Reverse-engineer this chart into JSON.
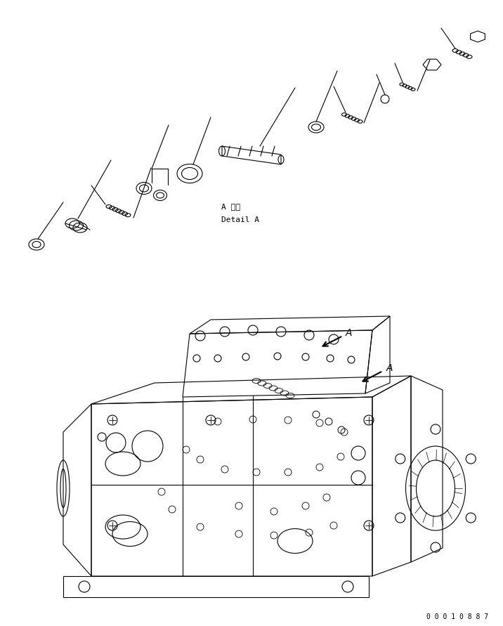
{
  "bg_color": "#ffffff",
  "line_color": "#000000",
  "text_color": "#000000",
  "detail_label_jp": "A 詳細",
  "detail_label_en": "Detail A",
  "part_number": "0 0 0 1 0 8 8 7",
  "fig_width": 7.16,
  "fig_height": 8.91,
  "dpi": 100
}
